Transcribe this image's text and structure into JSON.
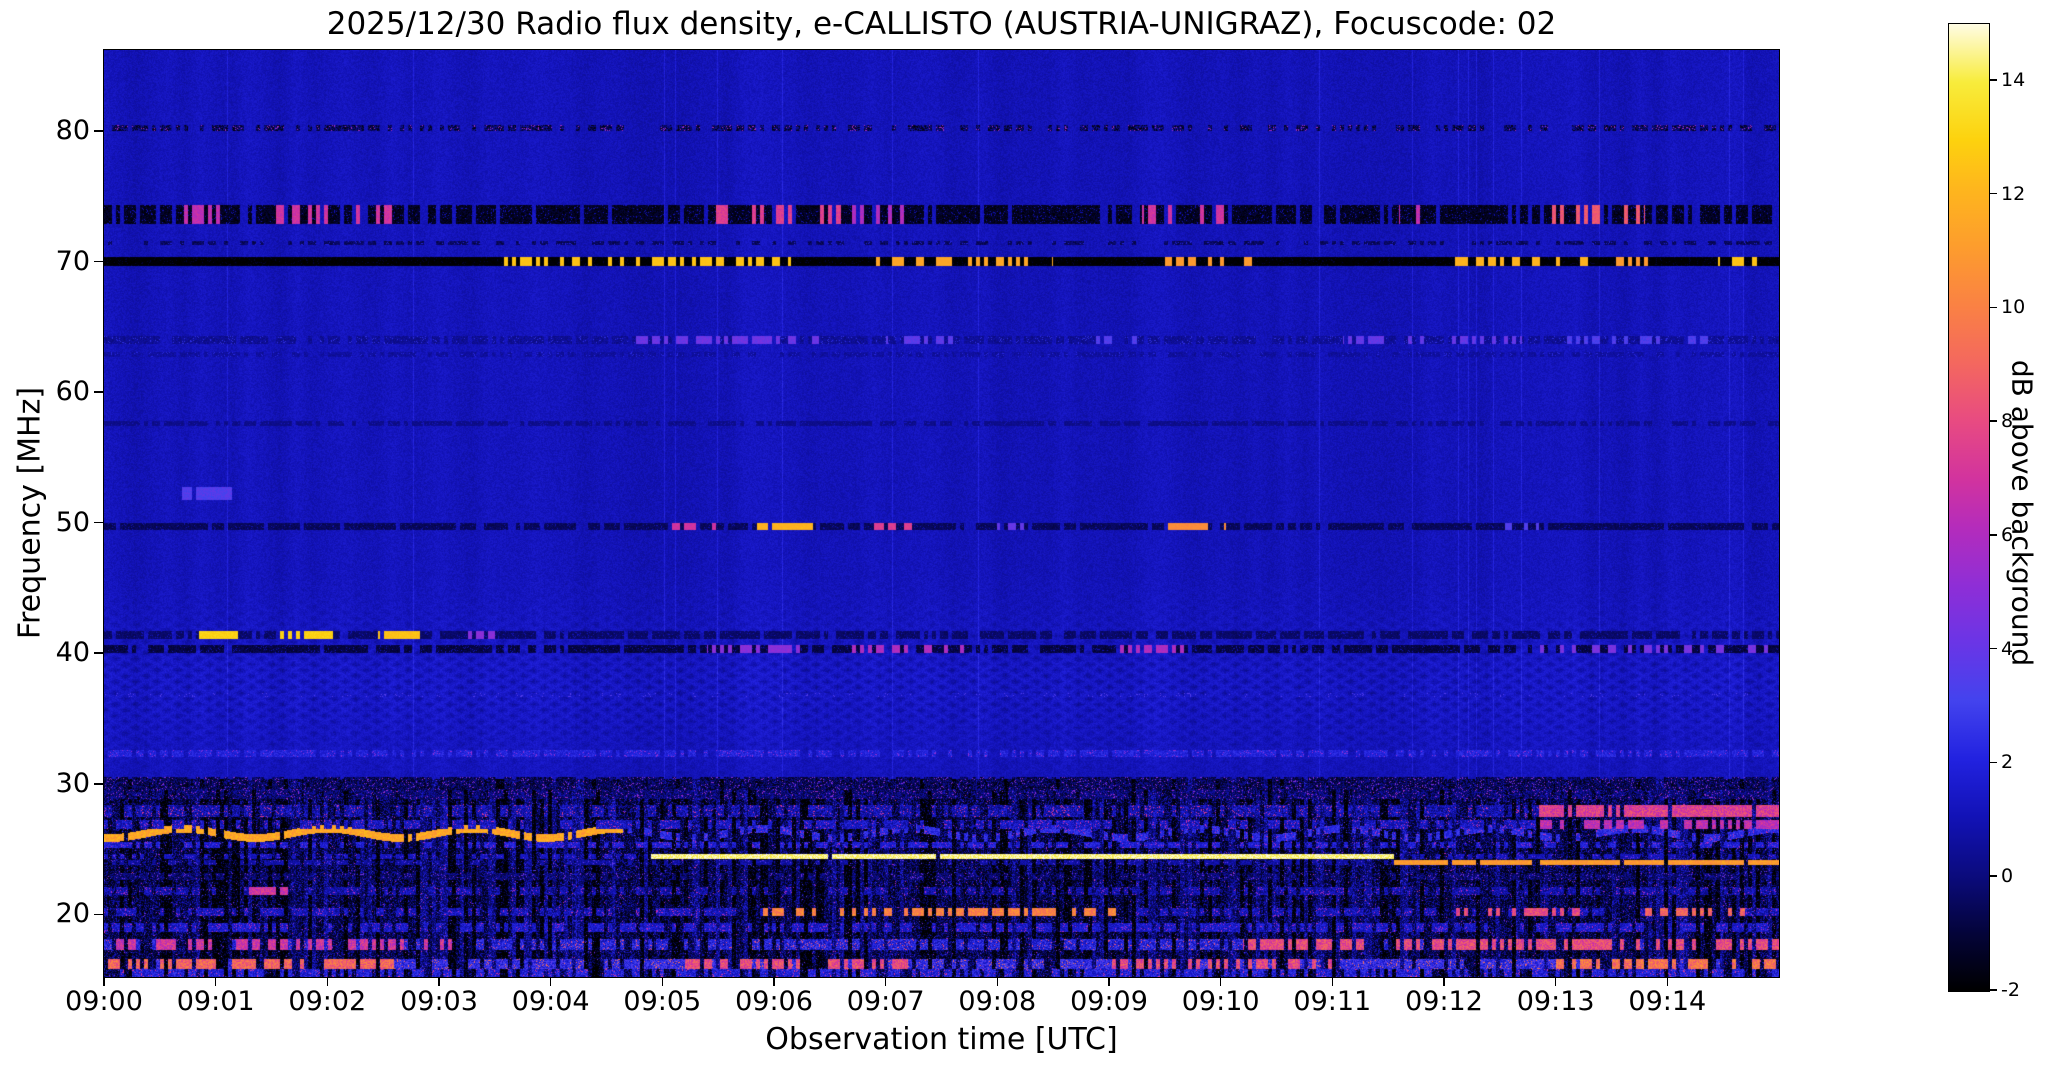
{
  "title": "2025/12/30  Radio flux density, e-CALLISTO (AUSTRIA-UNIGRAZ), Focuscode: 02",
  "axes": {
    "x_label": "Observation time [UTC]",
    "y_label": "Frequency [MHz]",
    "x_ticks": [
      "09:00",
      "09:01",
      "09:02",
      "09:03",
      "09:04",
      "09:05",
      "09:06",
      "09:07",
      "09:08",
      "09:09",
      "09:10",
      "09:11",
      "09:12",
      "09:13",
      "09:14"
    ],
    "y_ticks": [
      20,
      30,
      40,
      50,
      60,
      70,
      80
    ]
  },
  "colorbar": {
    "label": "dB above background",
    "ticks": [
      -2,
      0,
      2,
      4,
      6,
      8,
      10,
      12,
      14
    ],
    "range": [
      -2,
      15
    ],
    "stops": [
      [
        0,
        "#000000"
      ],
      [
        0.06,
        "#04043a"
      ],
      [
        0.12,
        "#0b0b7e"
      ],
      [
        0.18,
        "#1212b6"
      ],
      [
        0.24,
        "#2222e0"
      ],
      [
        0.3,
        "#4343ee"
      ],
      [
        0.36,
        "#6a35e6"
      ],
      [
        0.42,
        "#8f2ed6"
      ],
      [
        0.48,
        "#b52cbb"
      ],
      [
        0.53,
        "#d2339e"
      ],
      [
        0.59,
        "#e84b81"
      ],
      [
        0.65,
        "#f4685e"
      ],
      [
        0.71,
        "#fa8243"
      ],
      [
        0.77,
        "#fd9d2d"
      ],
      [
        0.83,
        "#feb61d"
      ],
      [
        0.88,
        "#fdd20e"
      ],
      [
        0.94,
        "#f8ec3c"
      ],
      [
        1,
        "#fffce4"
      ]
    ]
  },
  "chart_data": {
    "type": "heatmap",
    "title": "2025/12/30  Radio flux density, e-CALLISTO (AUSTRIA-UNIGRAZ), Focuscode: 02",
    "date": "2025/12/30",
    "station": "AUSTRIA-UNIGRAZ",
    "focuscode": "02",
    "xlabel": "Observation time [UTC]",
    "ylabel": "Frequency [MHz]",
    "x_start": "09:00",
    "x_end": "09:15",
    "x_range_minutes": [
      0,
      15
    ],
    "y_range_mhz": [
      15.2,
      86.2
    ],
    "value_units": "dB above background",
    "value_range": [
      -2,
      15
    ],
    "background_db_range": [
      0.5,
      2.0
    ],
    "description": "e-CALLISTO solar radio spectrogram quicklook; deep-blue background with horizontal RFI bands, interference fringes near 31-43 MHz, and a noisy black speckled shortwave region below 30 MHz",
    "features": [
      {
        "f": 80.2,
        "hw": 0.22,
        "base": -1.0,
        "duty": 0.55,
        "jitter": 3.0,
        "desc": "dotted RFI line at 80 MHz"
      },
      {
        "f": 73.6,
        "hw": 0.75,
        "base": -1.6,
        "duty": 0.8,
        "jitter": 1.2,
        "desc": "dark RFI band with magenta bursts",
        "segments": [
          {
            "t0": 0.7,
            "t1": 1.1,
            "db": 6.5,
            "duty": 0.3
          },
          {
            "t0": 1.5,
            "t1": 2.6,
            "db": 7.0,
            "duty": 0.32
          },
          {
            "t0": 5.4,
            "t1": 6.6,
            "db": 7.5,
            "duty": 0.35
          },
          {
            "t0": 6.7,
            "t1": 7.2,
            "db": 6.0,
            "duty": 0.3
          },
          {
            "t0": 9.3,
            "t1": 10.1,
            "db": 7.0,
            "duty": 0.3
          },
          {
            "t0": 11.6,
            "t1": 11.9,
            "db": 6.5,
            "duty": 0.3
          },
          {
            "t0": 12.9,
            "t1": 13.8,
            "db": 8.5,
            "duty": 0.4
          }
        ]
      },
      {
        "f": 71.4,
        "hw": 0.15,
        "base": -0.6,
        "duty": 0.5,
        "jitter": 1.2,
        "desc": "faint dotted line"
      },
      {
        "f": 70.0,
        "hw": 0.38,
        "base": -2.0,
        "duty": 1.0,
        "jitter": 0.4,
        "desc": "strong black RFI line with bright yellow dashes",
        "segments": [
          {
            "t0": 3.55,
            "t1": 6.15,
            "db": 12.5,
            "duty": 0.45
          },
          {
            "t0": 6.9,
            "t1": 8.5,
            "db": 11.5,
            "duty": 0.35
          },
          {
            "t0": 9.5,
            "t1": 10.35,
            "db": 11.0,
            "duty": 0.35
          },
          {
            "t0": 12.1,
            "t1": 13.4,
            "db": 12.0,
            "duty": 0.45
          },
          {
            "t0": 13.5,
            "t1": 13.85,
            "db": 11.0,
            "duty": 0.5
          },
          {
            "t0": 14.45,
            "t1": 14.8,
            "db": 12.5,
            "duty": 0.8
          }
        ]
      },
      {
        "f": 64.0,
        "hw": 0.3,
        "base": 0.3,
        "duty": 0.8,
        "jitter": 1.0,
        "desc": "faint line with blue-purple blobs",
        "segments": [
          {
            "t0": 4.75,
            "t1": 6.4,
            "db": 4.2,
            "duty": 0.5
          },
          {
            "t0": 7.0,
            "t1": 7.6,
            "db": 3.8,
            "duty": 0.5
          },
          {
            "t0": 8.85,
            "t1": 9.25,
            "db": 3.5,
            "duty": 0.5
          },
          {
            "t0": 11.1,
            "t1": 12.7,
            "db": 4.0,
            "duty": 0.45
          },
          {
            "t0": 13.1,
            "t1": 14.4,
            "db": 3.4,
            "duty": 0.4
          }
        ]
      },
      {
        "f": 62.9,
        "hw": 0.2,
        "base": 0.5,
        "duty": 0.6,
        "jitter": 0.8,
        "desc": "faint line"
      },
      {
        "f": 57.6,
        "hw": 0.2,
        "base": 0.2,
        "duty": 0.7,
        "jitter": 0.5,
        "desc": "faint dark line"
      },
      {
        "f": 52.2,
        "hw": 0.5,
        "base": 0.0,
        "duty": 0.0,
        "jitter": 1.0,
        "desc": "diffuse blue blob near 09:01",
        "segments": [
          {
            "t0": 0.7,
            "t1": 1.15,
            "db": 3.5,
            "duty": 0.9
          }
        ]
      },
      {
        "f": 49.7,
        "hw": 0.3,
        "base": -0.6,
        "duty": 0.85,
        "jitter": 0.7,
        "desc": "dark line with bright bursts",
        "segments": [
          {
            "t0": 5.05,
            "t1": 5.55,
            "db": 7.0,
            "duty": 0.6
          },
          {
            "t0": 5.85,
            "t1": 6.35,
            "db": 12.0,
            "duty": 0.7
          },
          {
            "t0": 6.9,
            "t1": 7.35,
            "db": 7.5,
            "duty": 0.6
          },
          {
            "t0": 8.0,
            "t1": 8.3,
            "db": 4.0,
            "duty": 0.5
          },
          {
            "t0": 9.5,
            "t1": 10.05,
            "db": 10.5,
            "duty": 0.7
          },
          {
            "t0": 12.55,
            "t1": 12.85,
            "db": 3.5,
            "duty": 0.5
          }
        ]
      },
      {
        "f": 41.4,
        "hw": 0.28,
        "base": -0.4,
        "duty": 0.8,
        "jitter": 0.7,
        "desc": "line with bright yellow dashes early",
        "segments": [
          {
            "t0": 0.85,
            "t1": 1.2,
            "db": 13.0,
            "duty": 0.75
          },
          {
            "t0": 1.55,
            "t1": 2.05,
            "db": 13.0,
            "duty": 0.7
          },
          {
            "t0": 2.45,
            "t1": 2.85,
            "db": 12.5,
            "duty": 0.7
          },
          {
            "t0": 3.25,
            "t1": 3.5,
            "db": 5.0,
            "duty": 0.5
          }
        ]
      },
      {
        "f": 40.3,
        "hw": 0.3,
        "base": -1.0,
        "duty": 0.8,
        "jitter": 0.9,
        "desc": "dark line with purple blobs",
        "segments": [
          {
            "t0": 5.4,
            "t1": 6.3,
            "db": 5.0,
            "duty": 0.45
          },
          {
            "t0": 6.7,
            "t1": 7.7,
            "db": 6.0,
            "duty": 0.4
          },
          {
            "t0": 9.1,
            "t1": 9.7,
            "db": 6.0,
            "duty": 0.5
          },
          {
            "t0": 12.8,
            "t1": 14.9,
            "db": 4.5,
            "duty": 0.4
          }
        ]
      },
      {
        "f": 36.8,
        "hw": 0.18,
        "base": 1.3,
        "duty": 0.4,
        "jitter": 1.0,
        "desc": "very faint line"
      },
      {
        "f": 32.3,
        "hw": 0.25,
        "base": 1.8,
        "duty": 0.7,
        "jitter": 1.5,
        "desc": "noisy speckled line"
      },
      {
        "f": 30.0,
        "hw": 0.5,
        "base": -1.0,
        "duty": 0.8,
        "jitter": 2.6,
        "desc": "noisy dark band"
      },
      {
        "f": 29.2,
        "hw": 0.4,
        "base": -0.5,
        "duty": 0.7,
        "jitter": 2.6,
        "desc": "noisy band"
      },
      {
        "f": 27.9,
        "hw": 0.45,
        "base": 0.5,
        "duty": 0.6,
        "jitter": 3.0,
        "desc": "speckle row with magenta band at right",
        "segments": [
          {
            "t0": 12.85,
            "t1": 15.0,
            "db": 7.5,
            "duty": 0.85
          }
        ]
      },
      {
        "f": 26.9,
        "hw": 0.35,
        "base": 1.0,
        "duty": 0.5,
        "jitter": 2.5,
        "desc": "speckle row with magenta band at right",
        "segments": [
          {
            "t0": 12.85,
            "t1": 15.0,
            "db": 6.5,
            "duty": 0.8
          }
        ]
      },
      {
        "f": 26.2,
        "hw": 0.3,
        "base": 2.0,
        "duty": 0.6,
        "jitter": 2.0,
        "wiggle": 0.35,
        "wiggle_period": 1.3,
        "desc": "bright wavy orange line 09:00-09:04.6",
        "segments": [
          {
            "t0": 0.0,
            "t1": 4.65,
            "db": 11.5,
            "duty": 0.9
          }
        ]
      },
      {
        "f": 25.3,
        "hw": 0.25,
        "base": 1.5,
        "duty": 0.5,
        "jitter": 2.0,
        "desc": "speckle row"
      },
      {
        "f": 24.45,
        "hw": 0.2,
        "base": 1.0,
        "duty": 0.4,
        "jitter": 1.5,
        "desc": "brilliant continuous carrier 09:05-09:11.5",
        "segments": [
          {
            "t0": 4.9,
            "t1": 11.55,
            "db": 14.5,
            "duty": 0.98
          }
        ]
      },
      {
        "f": 23.95,
        "hw": 0.18,
        "base": 0.5,
        "duty": 0.4,
        "jitter": 1.5,
        "desc": "bright pink carrier 09:11.5-end",
        "segments": [
          {
            "t0": 11.55,
            "t1": 15.0,
            "db": 11.0,
            "duty": 0.95
          }
        ]
      },
      {
        "f": 22.9,
        "hw": 0.3,
        "base": -0.5,
        "duty": 0.5,
        "jitter": 2.2,
        "desc": "speckle row"
      },
      {
        "f": 21.8,
        "hw": 0.3,
        "base": 0.5,
        "duty": 0.5,
        "jitter": 2.5,
        "desc": "speckle row",
        "segments": [
          {
            "t0": 1.3,
            "t1": 1.65,
            "db": 7.0,
            "duty": 0.6
          }
        ]
      },
      {
        "f": 20.15,
        "hw": 0.3,
        "base": 0.8,
        "duty": 0.5,
        "jitter": 2.5,
        "desc": "orange dashed line mid-interval",
        "segments": [
          {
            "t0": 5.9,
            "t1": 9.2,
            "db": 10.0,
            "duty": 0.5
          },
          {
            "t0": 12.0,
            "t1": 13.3,
            "db": 8.0,
            "duty": 0.4
          },
          {
            "t0": 13.8,
            "t1": 14.7,
            "db": 9.0,
            "duty": 0.5
          }
        ]
      },
      {
        "f": 19.0,
        "hw": 0.35,
        "base": 1.2,
        "duty": 0.55,
        "jitter": 2.2,
        "desc": "speckle row"
      },
      {
        "f": 17.7,
        "hw": 0.4,
        "base": 1.5,
        "duty": 0.6,
        "jitter": 3.0,
        "desc": "speckle row, brighter at edges",
        "segments": [
          {
            "t0": 0.0,
            "t1": 3.2,
            "db": 7.0,
            "duty": 0.5
          },
          {
            "t0": 10.2,
            "t1": 15.0,
            "db": 8.0,
            "duty": 0.55
          }
        ]
      },
      {
        "f": 16.2,
        "hw": 0.4,
        "base": 2.0,
        "duty": 0.65,
        "jitter": 3.2,
        "desc": "bright speckle row near bottom",
        "segments": [
          {
            "t0": 0.0,
            "t1": 2.6,
            "db": 9.0,
            "duty": 0.6
          },
          {
            "t0": 5.2,
            "t1": 7.2,
            "db": 8.0,
            "duty": 0.5
          },
          {
            "t0": 9.0,
            "t1": 11.0,
            "db": 8.0,
            "duty": 0.5
          },
          {
            "t0": 13.0,
            "t1": 15.0,
            "db": 9.5,
            "duty": 0.6
          }
        ]
      },
      {
        "f": 15.5,
        "hw": 0.3,
        "base": 1.5,
        "duty": 0.6,
        "jitter": 2.5,
        "desc": "speckle row at bottom edge"
      }
    ]
  }
}
